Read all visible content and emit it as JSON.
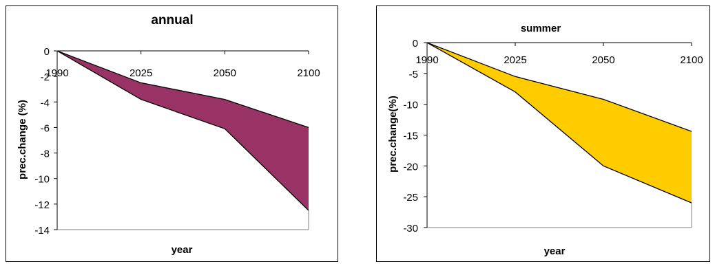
{
  "chart_data": [
    {
      "type": "area",
      "title": "annual",
      "xlabel": "year",
      "ylabel": "prec.change (%)",
      "categories": [
        "1990",
        "2025",
        "2050",
        "2100"
      ],
      "y_ticks": [
        "0",
        "-2",
        "-4",
        "-6",
        "-8",
        "-10",
        "-12",
        "-14"
      ],
      "ylim": [
        -14,
        0
      ],
      "series": [
        {
          "values": [
            0,
            -2.5,
            -3.8,
            -6.0
          ]
        },
        {
          "values": [
            0,
            -3.8,
            -6.1,
            -12.5
          ]
        }
      ],
      "fill_color": "#993366",
      "grid": false
    },
    {
      "type": "area",
      "title": "summer",
      "xlabel": "year",
      "ylabel": "prec.change(%)",
      "categories": [
        "1990",
        "2025",
        "2050",
        "2100"
      ],
      "y_ticks": [
        "0",
        "-5",
        "-10",
        "-15",
        "-20",
        "-25",
        "-30"
      ],
      "ylim": [
        -30,
        0
      ],
      "series": [
        {
          "values": [
            0,
            -5.5,
            -9.2,
            -14.4
          ]
        },
        {
          "values": [
            0,
            -8.0,
            -20.0,
            -26.0
          ]
        }
      ],
      "fill_color": "#ffcc00",
      "grid": false
    }
  ]
}
